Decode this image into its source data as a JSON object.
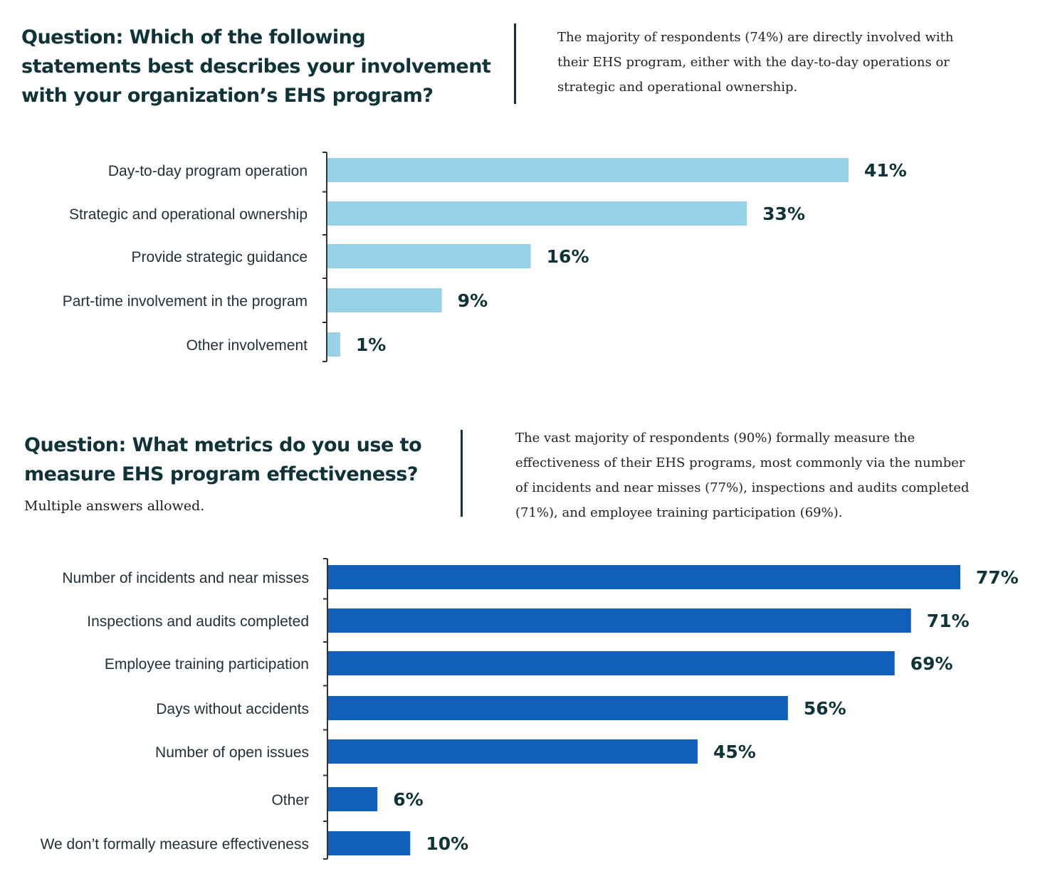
{
  "sections": [
    {
      "title": "Question: Which of the following statements best describes your involvement with your organization’s EHS program?",
      "subtitle": "",
      "summary": "The majority of respondents (74%) are directly involved with their EHS program, either with the day-to-day operations or strategic and operational ownership."
    },
    {
      "title": "Question: What metrics do you use to measure EHS program effectiveness?",
      "subtitle": "Multiple answers allowed.",
      "summary": "The vast majority of respondents (90%) formally measure the effectiveness of their EHS programs, most commonly via the number of incidents and near misses (77%), inspections and audits completed (71%), and employee training participation (69%)."
    }
  ],
  "chart_data": [
    {
      "type": "bar",
      "orientation": "horizontal",
      "categories": [
        "Day-to-day program operation",
        "Strategic and operational ownership",
        "Provide strategic guidance",
        "Part-time involvement in the program",
        "Other involvement"
      ],
      "values": [
        41,
        33,
        16,
        9,
        1
      ],
      "value_labels": [
        "41%",
        "33%",
        "16%",
        "9%",
        "1%"
      ],
      "color": "#97d2e6",
      "xlim": [
        0,
        41
      ],
      "grid": false,
      "legend": "none"
    },
    {
      "type": "bar",
      "orientation": "horizontal",
      "categories": [
        "Number of incidents and near misses",
        "Inspections and audits completed",
        "Employee training participation",
        "Days without accidents",
        "Number of open issues",
        "Other",
        "We don’t formally measure effectiveness"
      ],
      "values": [
        77,
        71,
        69,
        56,
        45,
        6,
        10
      ],
      "value_labels": [
        "77%",
        "71%",
        "69%",
        "56%",
        "45%",
        "6%",
        "10%"
      ],
      "color": "#0f5fbb",
      "xlim": [
        0,
        77
      ],
      "grid": false,
      "legend": "none"
    }
  ]
}
